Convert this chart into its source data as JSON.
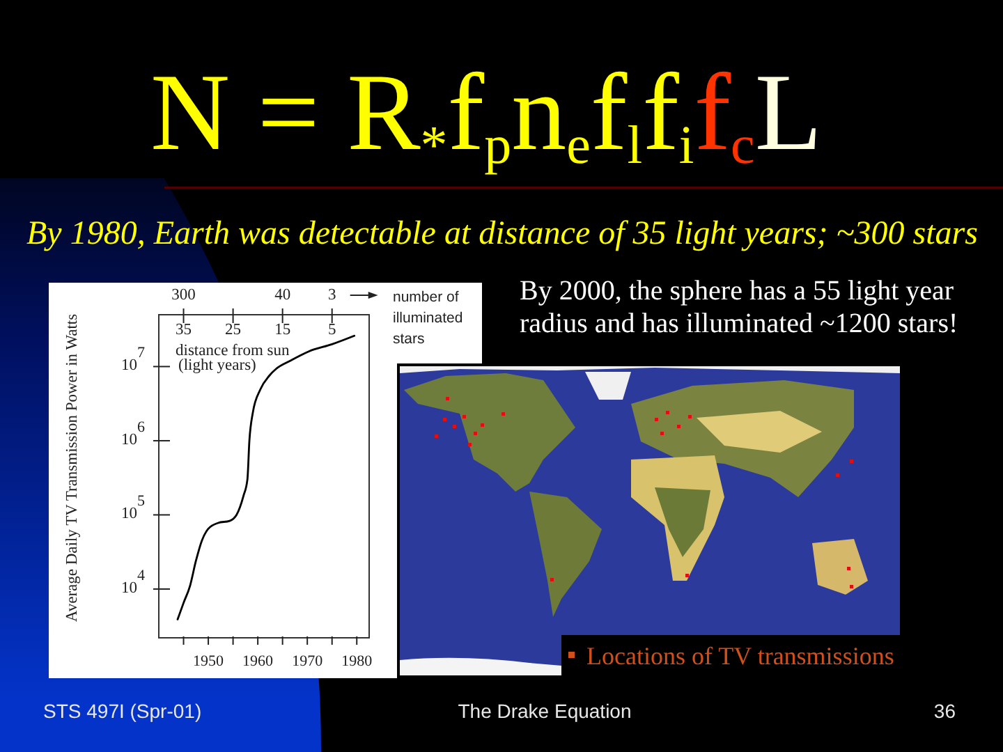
{
  "chart_data": {
    "type": "line",
    "title": "N = R$_{*}$f$_{p}$n$_{e}$f$_{l}$f$_{i}$f$_{c}$L",
    "subtitle": "By 1980, Earth was detectable at distance of 35 light years; ~300 stars",
    "ylabel": "Average Daily TV Transmission Power in Watts",
    "x2label": "distance from sun\n(light years)",
    "x": [
      1943.8,
      1945,
      1946.3,
      1947.5,
      1948.7,
      1950,
      1952,
      1954.3,
      1955.7,
      1957.1,
      1957.9,
      1958.3,
      1959,
      1960.5,
      1962.3,
      1963.7,
      1966.6,
      1970.3,
      1975,
      1979.5
    ],
    "values": [
      3900,
      6500,
      11000,
      24000,
      45000,
      65000,
      78000,
      83000,
      100000,
      180000,
      300000,
      1000000,
      2400000,
      4900000,
      7500000,
      9300000,
      12000000,
      16000000,
      20000000,
      26000000
    ],
    "color": "#000000",
    "line_style": "solid",
    "log": "y",
    "xlim": [
      1940,
      1982.5
    ],
    "xticks": [
      {
        "value": 1945,
        "label": null
      },
      1950,
      {
        "value": 1955,
        "label": null
      },
      1960,
      {
        "value": 1965,
        "label": null
      },
      1970,
      {
        "value": 1975,
        "label": null
      },
      1980
    ],
    "x2lim": [
      40,
      -2.5
    ],
    "x2ticks": [
      35,
      25,
      15,
      5
    ],
    "ylim": [
      2200,
      50000000
    ],
    "yticks": [
      {
        "value": 10000,
        "label": "10$^{4}$"
      },
      {
        "value": 100000,
        "label": "10$^{5}$"
      },
      {
        "value": 1000000,
        "label": "10$^{6}$"
      },
      {
        "value": 10000000,
        "label": "10$^{7}$"
      }
    ],
    "annotations": [
      "300",
      "40",
      "3",
      "number of\nilluminated\nstars",
      "By 2000, the sphere has a 55 light year radius and has illuminated ~1200 stars!",
      "Locations of TV transmissions",
      "STS 497I (Spr-01)",
      "The Drake Equation",
      "36"
    ]
  }
}
